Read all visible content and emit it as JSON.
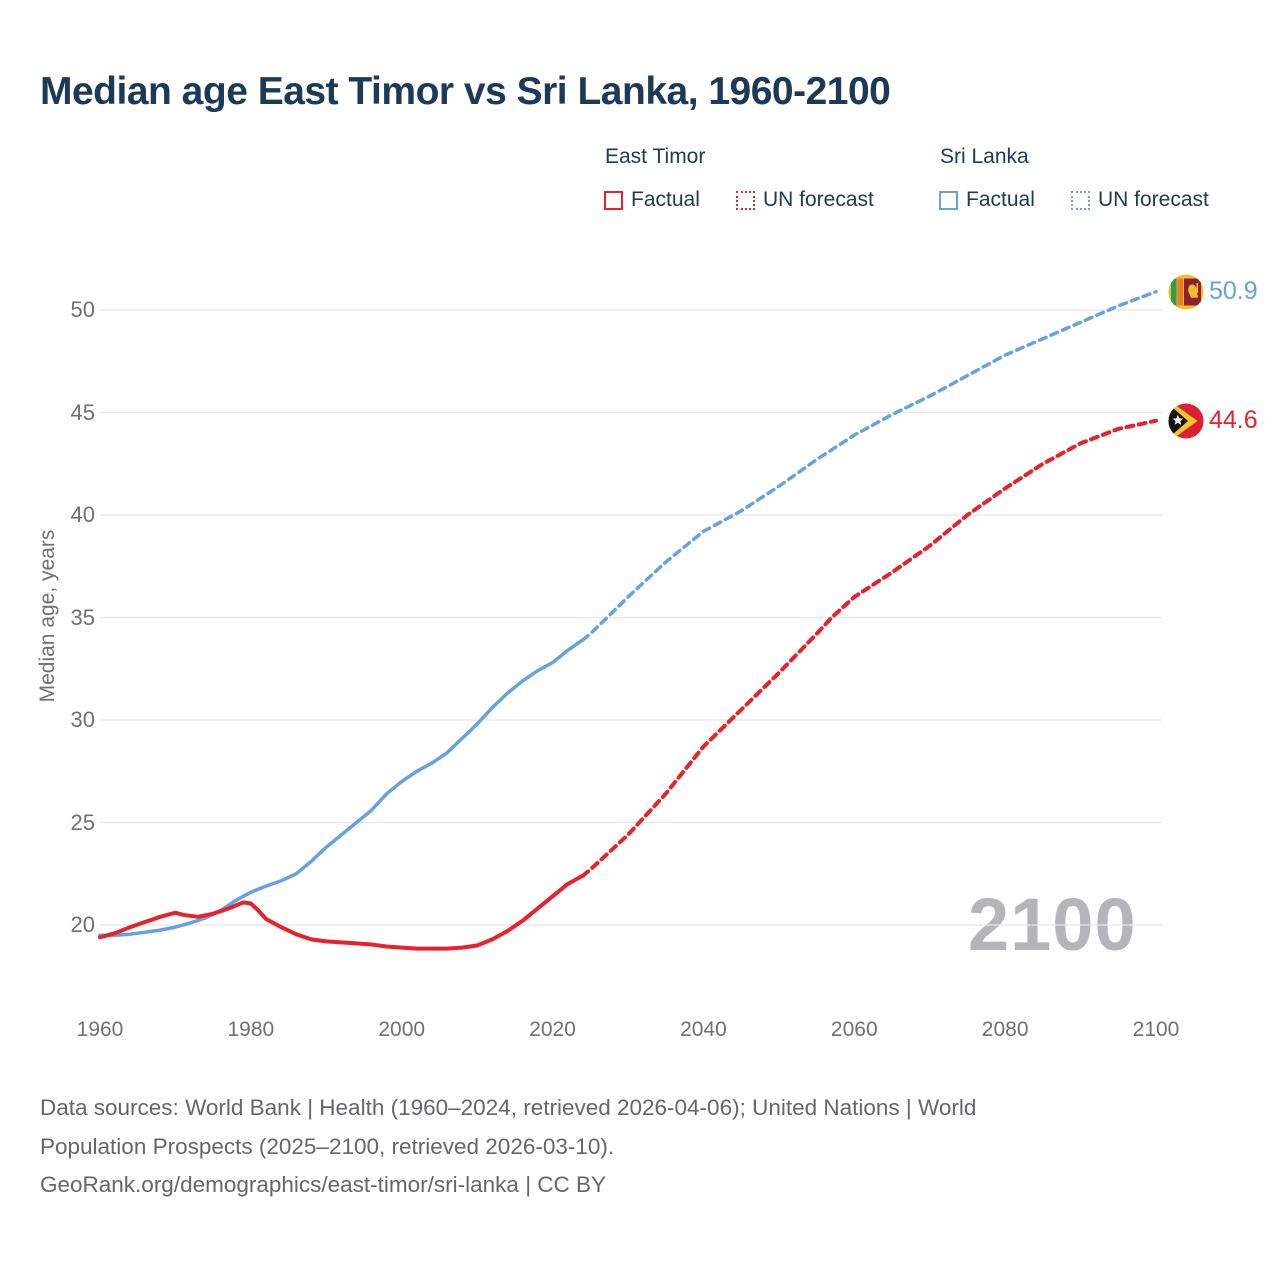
{
  "title": "Median age East Timor vs Sri Lanka, 1960-2100",
  "legend": {
    "groups": [
      {
        "label": "East Timor",
        "color": "#e8212b",
        "items": [
          {
            "label": "Factual",
            "style": "solid"
          },
          {
            "label": "UN forecast",
            "style": "dotted"
          }
        ]
      },
      {
        "label": "Sri Lanka",
        "color": "#66a2e0",
        "items": [
          {
            "label": "Factual",
            "style": "solid"
          },
          {
            "label": "UN forecast",
            "style": "dotted"
          }
        ]
      }
    ]
  },
  "y_axis": {
    "title": "Median age, years",
    "ticks": [
      20,
      25,
      30,
      35,
      40,
      45,
      50
    ]
  },
  "x_axis": {
    "ticks": [
      1960,
      1980,
      2000,
      2020,
      2040,
      2060,
      2080,
      2100
    ]
  },
  "watermark": "2100",
  "end_labels": {
    "sri_lanka": {
      "value": "50.9",
      "color": "#66a2e0",
      "flag": "sri-lanka-flag-icon"
    },
    "east_timor": {
      "value": "44.6",
      "color": "#e8212b",
      "flag": "east-timor-flag-icon"
    }
  },
  "footer": {
    "line1": "Data sources: World Bank | Health (1960–2024, retrieved 2026-04-06); United Nations | World",
    "line2": "Population Prospects (2025–2100, retrieved 2026-03-10).",
    "line3": "GeoRank.org/demographics/east-timor/sri-lanka | CC BY"
  },
  "chart_data": {
    "type": "line",
    "title": "Median age East Timor vs Sri Lanka, 1960-2100",
    "xlabel": "",
    "ylabel": "Median age, years",
    "xlim": [
      1960,
      2100
    ],
    "ylim": [
      18,
      52
    ],
    "grid": "horizontal",
    "legend_position": "top",
    "series": [
      {
        "name": "Sri Lanka Factual",
        "color": "#66a2e0",
        "style": "solid",
        "width": 3.5,
        "points": [
          [
            1960,
            19.5
          ],
          [
            1962,
            19.5
          ],
          [
            1964,
            19.55
          ],
          [
            1966,
            19.65
          ],
          [
            1968,
            19.75
          ],
          [
            1970,
            19.9
          ],
          [
            1972,
            20.1
          ],
          [
            1974,
            20.35
          ],
          [
            1976,
            20.7
          ],
          [
            1978,
            21.2
          ],
          [
            1980,
            21.6
          ],
          [
            1982,
            21.9
          ],
          [
            1984,
            22.15
          ],
          [
            1986,
            22.5
          ],
          [
            1988,
            23.1
          ],
          [
            1990,
            23.8
          ],
          [
            1992,
            24.4
          ],
          [
            1994,
            25.0
          ],
          [
            1996,
            25.6
          ],
          [
            1998,
            26.4
          ],
          [
            2000,
            27.0
          ],
          [
            2002,
            27.5
          ],
          [
            2004,
            27.9
          ],
          [
            2006,
            28.4
          ],
          [
            2008,
            29.1
          ],
          [
            2010,
            29.8
          ],
          [
            2012,
            30.6
          ],
          [
            2014,
            31.3
          ],
          [
            2016,
            31.9
          ],
          [
            2018,
            32.4
          ],
          [
            2020,
            32.8
          ],
          [
            2022,
            33.4
          ],
          [
            2024,
            33.9
          ]
        ]
      },
      {
        "name": "Sri Lanka UN forecast",
        "color": "#66a2e0",
        "style": "dashed",
        "width": 3.5,
        "points": [
          [
            2024,
            33.9
          ],
          [
            2025,
            34.2
          ],
          [
            2030,
            36.0
          ],
          [
            2035,
            37.7
          ],
          [
            2040,
            39.2
          ],
          [
            2045,
            40.2
          ],
          [
            2050,
            41.4
          ],
          [
            2055,
            42.7
          ],
          [
            2060,
            43.9
          ],
          [
            2065,
            44.9
          ],
          [
            2070,
            45.8
          ],
          [
            2075,
            46.8
          ],
          [
            2080,
            47.8
          ],
          [
            2085,
            48.6
          ],
          [
            2090,
            49.4
          ],
          [
            2095,
            50.2
          ],
          [
            2100,
            50.9
          ]
        ]
      },
      {
        "name": "East Timor Factual",
        "color": "#e8212b",
        "style": "solid",
        "width": 4,
        "points": [
          [
            1960,
            19.4
          ],
          [
            1962,
            19.6
          ],
          [
            1964,
            19.9
          ],
          [
            1966,
            20.15
          ],
          [
            1968,
            20.4
          ],
          [
            1970,
            20.6
          ],
          [
            1971,
            20.5
          ],
          [
            1973,
            20.4
          ],
          [
            1975,
            20.55
          ],
          [
            1977,
            20.8
          ],
          [
            1979,
            21.1
          ],
          [
            1980,
            21.05
          ],
          [
            1981,
            20.7
          ],
          [
            1982,
            20.3
          ],
          [
            1984,
            19.9
          ],
          [
            1986,
            19.55
          ],
          [
            1988,
            19.3
          ],
          [
            1990,
            19.2
          ],
          [
            1992,
            19.15
          ],
          [
            1994,
            19.1
          ],
          [
            1996,
            19.05
          ],
          [
            1998,
            18.95
          ],
          [
            2000,
            18.9
          ],
          [
            2002,
            18.85
          ],
          [
            2004,
            18.85
          ],
          [
            2006,
            18.85
          ],
          [
            2008,
            18.9
          ],
          [
            2010,
            19.0
          ],
          [
            2012,
            19.3
          ],
          [
            2014,
            19.7
          ],
          [
            2016,
            20.2
          ],
          [
            2018,
            20.8
          ],
          [
            2020,
            21.4
          ],
          [
            2022,
            22.0
          ],
          [
            2024,
            22.4
          ]
        ]
      },
      {
        "name": "East Timor UN forecast",
        "color": "#e8212b",
        "style": "dashed",
        "width": 4,
        "points": [
          [
            2024,
            22.4
          ],
          [
            2025,
            22.7
          ],
          [
            2030,
            24.4
          ],
          [
            2035,
            26.4
          ],
          [
            2040,
            28.7
          ],
          [
            2045,
            30.5
          ],
          [
            2050,
            32.3
          ],
          [
            2055,
            34.2
          ],
          [
            2057,
            35.0
          ],
          [
            2060,
            36.0
          ],
          [
            2065,
            37.2
          ],
          [
            2070,
            38.5
          ],
          [
            2075,
            40.0
          ],
          [
            2080,
            41.3
          ],
          [
            2085,
            42.5
          ],
          [
            2090,
            43.5
          ],
          [
            2095,
            44.2
          ],
          [
            2100,
            44.6
          ]
        ]
      }
    ],
    "end_annotations": [
      {
        "series": "Sri Lanka UN forecast",
        "year": 2100,
        "value": 50.9
      },
      {
        "series": "East Timor UN forecast",
        "year": 2100,
        "value": 44.6
      }
    ]
  }
}
